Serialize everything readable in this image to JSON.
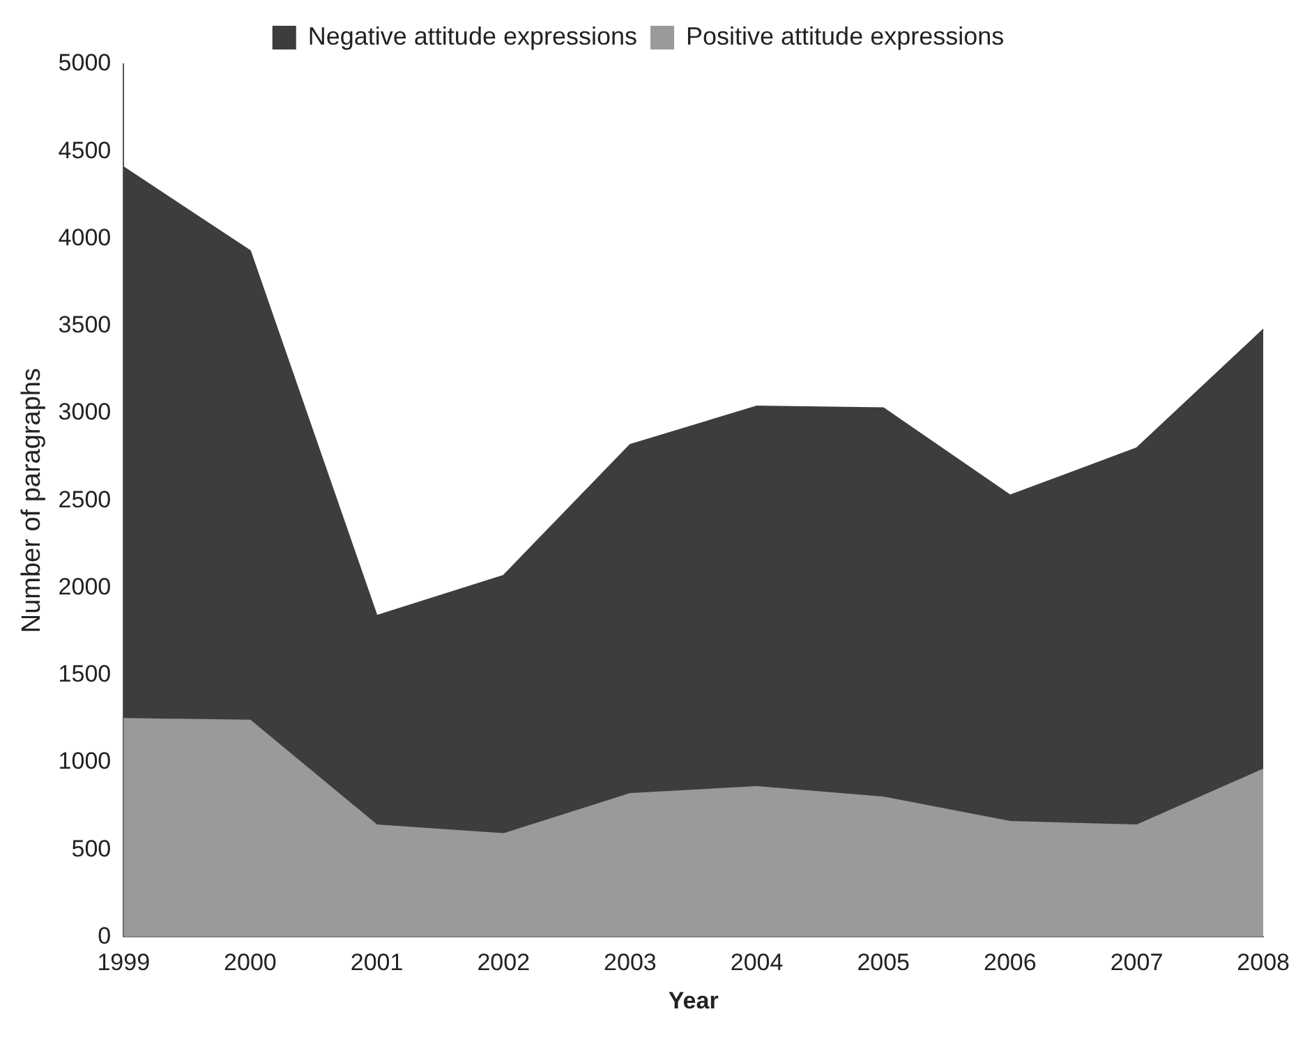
{
  "chart_data": {
    "type": "area",
    "stacked": true,
    "xlabel": "Year",
    "ylabel": "Number of paragraphs",
    "categories": [
      "1999",
      "2000",
      "2001",
      "2002",
      "2003",
      "2004",
      "2005",
      "2006",
      "2007",
      "2008"
    ],
    "series": [
      {
        "name": "Positive attitude expressions",
        "color": "#9a9a9a",
        "values": [
          1250,
          1240,
          640,
          590,
          820,
          860,
          800,
          660,
          640,
          960
        ]
      },
      {
        "name": "Negative attitude expressions",
        "color": "#3d3d3f",
        "values": [
          3160,
          2690,
          1200,
          1480,
          2000,
          2180,
          2230,
          1870,
          2160,
          2520
        ]
      }
    ],
    "ylim": [
      0,
      5000
    ],
    "yticks": [
      0,
      500,
      1000,
      1500,
      2000,
      2500,
      3000,
      3500,
      4000,
      4500,
      5000
    ],
    "grid": false,
    "legend": "top"
  }
}
